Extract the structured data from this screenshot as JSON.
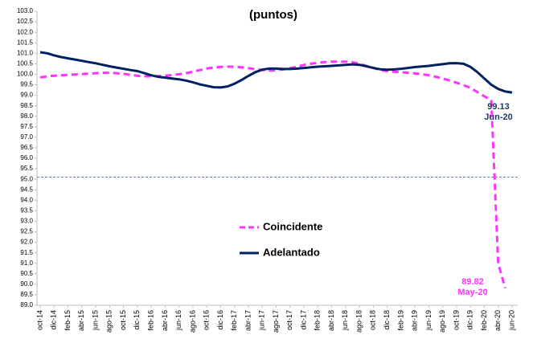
{
  "chart_data": {
    "type": "line",
    "title": "(puntos)",
    "categories": [
      "oct-14",
      null,
      "dic-14",
      null,
      "feb-15",
      null,
      "abr-15",
      null,
      "jun-15",
      null,
      "ago-15",
      null,
      "oct-15",
      null,
      "dic-15",
      null,
      "feb-16",
      null,
      "abr-16",
      null,
      "jun-16",
      null,
      "ago-16",
      null,
      "oct-16",
      null,
      "dic-16",
      null,
      "feb-17",
      null,
      "abr-17",
      null,
      "jun-17",
      null,
      "ago-17",
      null,
      "oct-17",
      null,
      "dic-17",
      null,
      "feb-18",
      null,
      "abr-18",
      null,
      "jun-18",
      null,
      "ago-18",
      null,
      "oct-18",
      null,
      "dic-18",
      null,
      "feb-19",
      null,
      "abr-19",
      null,
      "jun-19",
      null,
      "ago-19",
      null,
      "oct-19",
      null,
      "dic-19",
      null,
      "feb-20",
      null,
      "abr-20",
      null,
      "jun-20"
    ],
    "series": [
      {
        "name": "Coincidente",
        "color": "#ff33ff",
        "dashed": true,
        "values": [
          99.85,
          99.9,
          99.93,
          99.95,
          99.97,
          99.99,
          100.01,
          100.03,
          100.05,
          100.07,
          100.07,
          100.05,
          100.02,
          99.97,
          99.93,
          99.9,
          99.9,
          99.91,
          99.93,
          99.96,
          100.0,
          100.05,
          100.12,
          100.2,
          100.27,
          100.32,
          100.35,
          100.36,
          100.36,
          100.33,
          100.29,
          100.24,
          100.2,
          100.18,
          100.19,
          100.23,
          100.29,
          100.36,
          100.44,
          100.5,
          100.55,
          100.58,
          100.6,
          100.6,
          100.6,
          100.57,
          100.5,
          100.4,
          100.3,
          100.2,
          100.15,
          100.12,
          100.1,
          100.07,
          100.04,
          100.0,
          99.95,
          99.88,
          99.8,
          99.7,
          99.6,
          99.48,
          99.35,
          99.15,
          98.95,
          98.75,
          91.0,
          89.82,
          null
        ]
      },
      {
        "name": "Adelantado",
        "color": "#002060",
        "dashed": false,
        "values": [
          101.05,
          101.0,
          100.9,
          100.82,
          100.76,
          100.7,
          100.64,
          100.58,
          100.52,
          100.45,
          100.38,
          100.32,
          100.26,
          100.2,
          100.15,
          100.05,
          99.95,
          99.88,
          99.84,
          99.8,
          99.76,
          99.7,
          99.62,
          99.52,
          99.45,
          99.38,
          99.37,
          99.42,
          99.55,
          99.72,
          99.92,
          100.1,
          100.22,
          100.27,
          100.27,
          100.25,
          100.25,
          100.27,
          100.3,
          100.33,
          100.36,
          100.38,
          100.4,
          100.42,
          100.45,
          100.47,
          100.45,
          100.38,
          100.3,
          100.24,
          100.22,
          100.23,
          100.26,
          100.3,
          100.34,
          100.37,
          100.4,
          100.44,
          100.48,
          100.52,
          100.53,
          100.5,
          100.35,
          100.1,
          99.8,
          99.5,
          99.3,
          99.18,
          99.13
        ]
      }
    ],
    "ylim": [
      89,
      103
    ],
    "yticks": [
      {
        "value": 89,
        "label": "89.0"
      },
      {
        "value": 89.5,
        "label": "89.5"
      },
      {
        "value": 90,
        "label": "90.0"
      },
      {
        "value": 90.5,
        "label": "90.5"
      },
      {
        "value": 91,
        "label": "91.0"
      },
      {
        "value": 91.5,
        "label": "91.5"
      },
      {
        "value": 92,
        "label": "92.0"
      },
      {
        "value": 92.5,
        "label": "92.5"
      },
      {
        "value": 93,
        "label": "93.0"
      },
      {
        "value": 93.5,
        "label": "93.5"
      },
      {
        "value": 94,
        "label": "94.0"
      },
      {
        "value": 94.5,
        "label": "94.5"
      },
      {
        "value": 95,
        "label": "95.0"
      },
      {
        "value": 95.5,
        "label": "95.5"
      },
      {
        "value": 96,
        "label": "96.0"
      },
      {
        "value": 96.5,
        "label": "96.5"
      },
      {
        "value": 97,
        "label": "97.0"
      },
      {
        "value": 97.5,
        "label": "97.5"
      },
      {
        "value": 98,
        "label": "98.0"
      },
      {
        "value": 98.5,
        "label": "98.5"
      },
      {
        "value": 99,
        "label": "99.0"
      },
      {
        "value": 99.5,
        "label": "99.5"
      },
      {
        "value": 100,
        "label": "100.0"
      },
      {
        "value": 100.5,
        "label": "100.5"
      },
      {
        "value": 101,
        "label": "101.0"
      },
      {
        "value": 101.5,
        "label": "101.5"
      },
      {
        "value": 102,
        "label": "102.0"
      },
      {
        "value": 102.5,
        "label": "102.5"
      },
      {
        "value": 103,
        "label": "103.0"
      }
    ],
    "reference_line": {
      "value": 95.1,
      "color": "#2f5597"
    },
    "legend": "center",
    "annotations": [
      {
        "text": [
          "99.13",
          "Jun-20"
        ],
        "color": "#1f3864"
      },
      {
        "text": [
          "89.82",
          "May-20"
        ],
        "color": "#ff33ff"
      }
    ]
  }
}
